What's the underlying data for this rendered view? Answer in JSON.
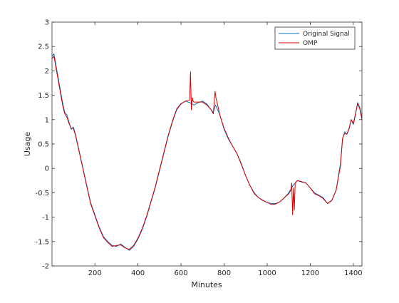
{
  "chart_data": {
    "type": "line",
    "title": "",
    "xlabel": "Minutes",
    "ylabel": "Usage",
    "xlim": [
      1,
      1440
    ],
    "ylim": [
      -2,
      3
    ],
    "xticks": [
      200,
      400,
      600,
      800,
      1000,
      1200,
      1400
    ],
    "xtick_labels": [
      "200",
      "400",
      "600",
      "800",
      "1000",
      "1200",
      "1400"
    ],
    "yticks": [
      -2,
      -1.5,
      -1,
      -0.5,
      0,
      0.5,
      1,
      1.5,
      2,
      2.5,
      3
    ],
    "ytick_labels": [
      "-2",
      "-1.5",
      "-1",
      "-0.5",
      "0",
      "0.5",
      "1",
      "1.5",
      "2",
      "2.5",
      "3"
    ],
    "grid": false,
    "legend_position": "top-right",
    "series": [
      {
        "name": "Original Signal",
        "color": "#0072bd",
        "x": [
          1,
          10,
          20,
          30,
          40,
          50,
          60,
          70,
          80,
          90,
          100,
          110,
          120,
          130,
          140,
          160,
          180,
          200,
          220,
          240,
          260,
          280,
          300,
          320,
          340,
          360,
          380,
          400,
          420,
          440,
          460,
          480,
          500,
          520,
          540,
          560,
          580,
          600,
          620,
          640,
          660,
          680,
          700,
          720,
          740,
          750,
          760,
          780,
          800,
          820,
          840,
          860,
          880,
          900,
          920,
          940,
          960,
          980,
          1000,
          1020,
          1040,
          1060,
          1080,
          1100,
          1120,
          1140,
          1160,
          1180,
          1200,
          1220,
          1240,
          1260,
          1280,
          1300,
          1320,
          1340,
          1350,
          1360,
          1370,
          1380,
          1390,
          1400,
          1410,
          1420,
          1430,
          1440
        ],
        "y": [
          2.3,
          2.35,
          2.1,
          1.85,
          1.6,
          1.35,
          1.15,
          1.1,
          0.95,
          0.8,
          0.85,
          0.7,
          0.5,
          0.3,
          0.1,
          -0.3,
          -0.7,
          -0.95,
          -1.2,
          -1.4,
          -1.5,
          -1.58,
          -1.6,
          -1.55,
          -1.62,
          -1.68,
          -1.6,
          -1.45,
          -1.25,
          -1.0,
          -0.7,
          -0.4,
          -0.05,
          0.3,
          0.65,
          0.95,
          1.2,
          1.32,
          1.38,
          1.35,
          1.3,
          1.35,
          1.38,
          1.32,
          1.2,
          1.15,
          1.3,
          1.1,
          0.8,
          0.6,
          0.45,
          0.3,
          0.1,
          -0.15,
          -0.35,
          -0.5,
          -0.6,
          -0.65,
          -0.7,
          -0.72,
          -0.72,
          -0.68,
          -0.6,
          -0.5,
          -0.35,
          -0.25,
          -0.28,
          -0.3,
          -0.4,
          -0.5,
          -0.55,
          -0.6,
          -0.72,
          -0.65,
          -0.45,
          0.1,
          0.6,
          0.75,
          0.7,
          0.8,
          1.0,
          0.9,
          1.1,
          1.35,
          1.25,
          1.05
        ]
      },
      {
        "name": "OMP",
        "color": "#d90000",
        "x": [
          1,
          10,
          20,
          30,
          40,
          50,
          60,
          70,
          80,
          90,
          100,
          110,
          120,
          130,
          140,
          160,
          180,
          200,
          220,
          240,
          260,
          280,
          300,
          320,
          340,
          360,
          380,
          400,
          420,
          440,
          460,
          480,
          500,
          520,
          540,
          560,
          580,
          600,
          620,
          640,
          644,
          648,
          652,
          656,
          660,
          680,
          700,
          720,
          740,
          750,
          758,
          762,
          770,
          780,
          800,
          820,
          840,
          860,
          880,
          900,
          920,
          940,
          960,
          980,
          1000,
          1020,
          1040,
          1060,
          1080,
          1100,
          1110,
          1114,
          1118,
          1122,
          1126,
          1130,
          1135,
          1140,
          1160,
          1180,
          1200,
          1220,
          1240,
          1260,
          1280,
          1300,
          1320,
          1340,
          1350,
          1360,
          1370,
          1380,
          1390,
          1400,
          1410,
          1420,
          1430,
          1440
        ],
        "y": [
          2.25,
          2.3,
          2.05,
          1.8,
          1.55,
          1.3,
          1.12,
          1.05,
          0.92,
          0.82,
          0.82,
          0.68,
          0.48,
          0.28,
          0.08,
          -0.32,
          -0.72,
          -0.97,
          -1.22,
          -1.42,
          -1.52,
          -1.6,
          -1.58,
          -1.57,
          -1.63,
          -1.66,
          -1.58,
          -1.43,
          -1.23,
          -0.98,
          -0.68,
          -0.38,
          -0.03,
          0.32,
          0.67,
          0.97,
          1.22,
          1.33,
          1.38,
          1.4,
          1.98,
          1.2,
          1.45,
          1.38,
          1.36,
          1.36,
          1.36,
          1.3,
          1.2,
          1.12,
          1.58,
          1.45,
          1.3,
          1.1,
          0.82,
          0.62,
          0.45,
          0.3,
          0.08,
          -0.15,
          -0.35,
          -0.52,
          -0.6,
          -0.66,
          -0.7,
          -0.74,
          -0.73,
          -0.68,
          -0.6,
          -0.52,
          -0.45,
          -0.3,
          -0.95,
          -0.4,
          -0.85,
          -0.3,
          -0.28,
          -0.25,
          -0.27,
          -0.3,
          -0.4,
          -0.52,
          -0.56,
          -0.62,
          -0.72,
          -0.66,
          -0.45,
          0.05,
          0.62,
          0.72,
          0.7,
          0.82,
          1.0,
          0.92,
          1.12,
          1.33,
          1.22,
          1.0
        ]
      }
    ]
  }
}
